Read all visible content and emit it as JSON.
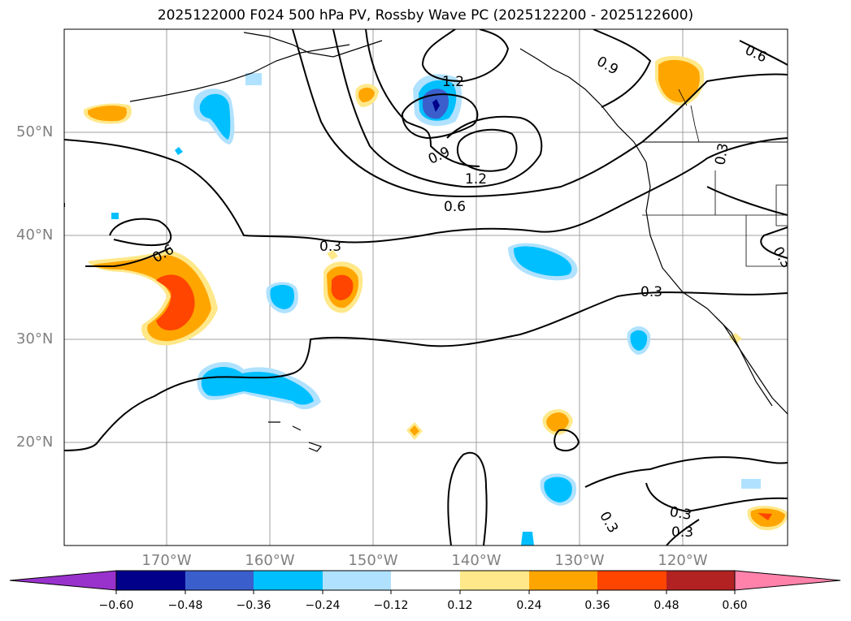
{
  "title": "2025122000 F024 500 hPa PV, Rossby Wave PC (2025122200 - 2025122600)",
  "lat_labels": [
    "50°N",
    "40°N",
    "30°N",
    "20°N"
  ],
  "lon_labels": [
    "170°W",
    "160°W",
    "150°W",
    "140°W",
    "130°W",
    "120°W"
  ],
  "contour_labels": [
    "1.2",
    "0.9",
    "1.2",
    "0.6",
    "0.3",
    "0.6",
    "0.3",
    "0.9",
    "0.6",
    "0.3",
    "0.3",
    "0.3",
    "0.3",
    "0.3"
  ],
  "colorbar": {
    "ticks": [
      "−0.60",
      "−0.48",
      "−0.36",
      "−0.24",
      "−0.12",
      "0.12",
      "0.24",
      "0.36",
      "0.48",
      "0.60"
    ],
    "colors": [
      "#9932cc",
      "#00008b",
      "#3a5fcd",
      "#00bfff",
      "#b0e2ff",
      "#ffffff",
      "#ffe88a",
      "#ffa500",
      "#ff4500",
      "#b22222",
      "#ff82ab"
    ]
  },
  "map_colors": {
    "neg_light": "#b0e2ff",
    "neg_mid": "#00bfff",
    "neg_strong": "#3a5fcd",
    "neg_max": "#00008b",
    "pos_light": "#ffe88a",
    "pos_mid": "#ffa500",
    "pos_strong": "#ff4500",
    "pos_max": "#b22222"
  }
}
